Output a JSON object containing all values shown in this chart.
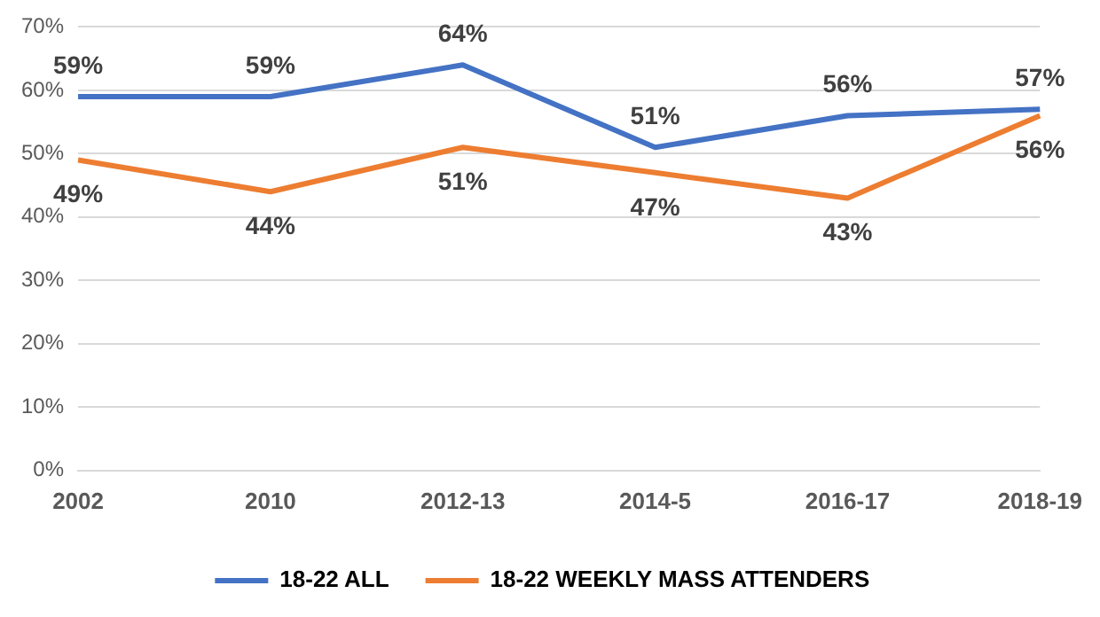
{
  "chart_data": {
    "type": "line",
    "categories": [
      "2002",
      "2010",
      "2012-13",
      "2014-5",
      "2016-17",
      "2018-19"
    ],
    "series": [
      {
        "name": "18-22 ALL",
        "color": "#4472c4",
        "values": [
          59,
          59,
          64,
          51,
          56,
          57
        ],
        "value_labels": [
          "59%",
          "59%",
          "64%",
          "51%",
          "56%",
          "57%"
        ]
      },
      {
        "name": "18-22 WEEKLY MASS ATTENDERS",
        "color": "#ed7d31",
        "values": [
          49,
          44,
          51,
          47,
          43,
          56
        ],
        "value_labels": [
          "49%",
          "44%",
          "51%",
          "47%",
          "43%",
          "56%"
        ]
      }
    ],
    "ylim": [
      0,
      70
    ],
    "yticks": [
      {
        "value": 0,
        "label": "0%"
      },
      {
        "value": 10,
        "label": "10%"
      },
      {
        "value": 20,
        "label": "20%"
      },
      {
        "value": 30,
        "label": "30%"
      },
      {
        "value": 40,
        "label": "40%"
      },
      {
        "value": 50,
        "label": "50%"
      },
      {
        "value": 60,
        "label": "60%"
      },
      {
        "value": 70,
        "label": "70%"
      }
    ],
    "grid": "y",
    "legend": "bottom",
    "marker": "none",
    "line_style": "solid"
  }
}
